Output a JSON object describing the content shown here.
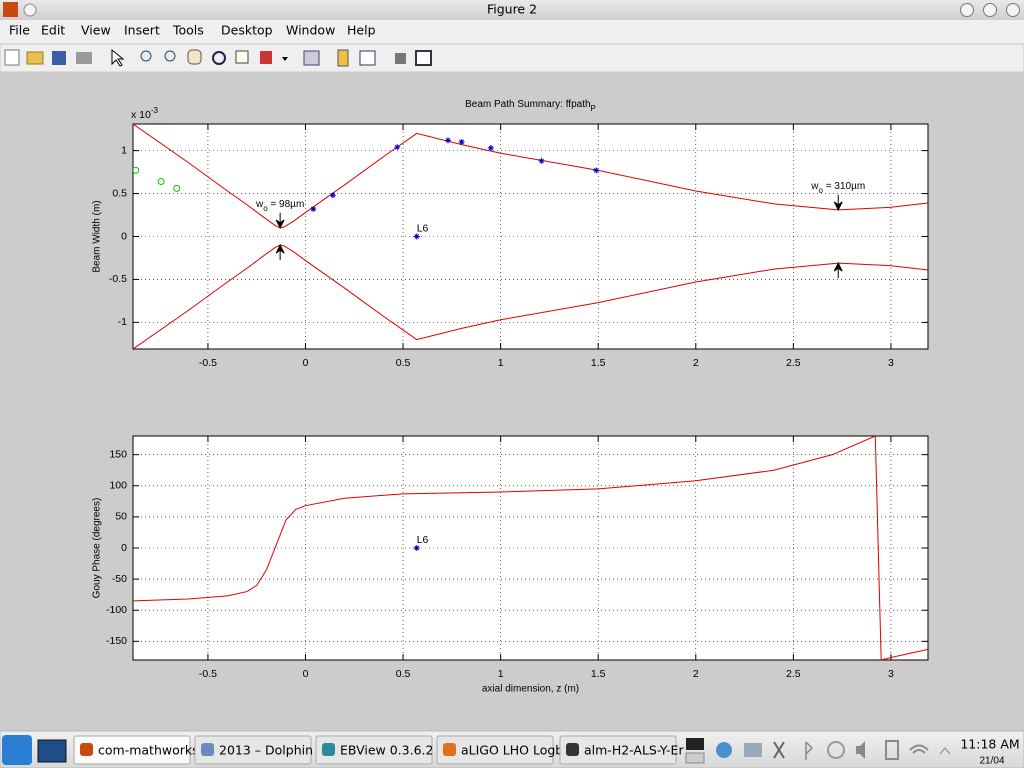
{
  "window": {
    "title": "Figure 2"
  },
  "menu": [
    "File",
    "Edit",
    "View",
    "Insert",
    "Tools",
    "Desktop",
    "Window",
    "Help"
  ],
  "chart_data": [
    {
      "type": "line",
      "title": {
        "text": "Beam Path Summary: ffpath",
        "sub": "P"
      },
      "y_multiplier": {
        "text": "x 10",
        "sup": "-3"
      },
      "ylabel": "Beam Width (m)",
      "xlim": [
        -0.884,
        3.19
      ],
      "ylim": [
        -1.31,
        1.31
      ],
      "xticks": [
        -0.5,
        0,
        0.5,
        1,
        1.5,
        2,
        2.5,
        3
      ],
      "yticks": [
        -1,
        -0.5,
        0,
        0.5,
        1
      ],
      "grid": true,
      "x": [
        -0.884,
        -0.6,
        -0.4,
        -0.3,
        -0.2,
        -0.15,
        -0.13,
        -0.11,
        -0.06,
        0,
        0.2,
        0.4,
        0.57,
        0.8,
        1.0,
        1.5,
        2.0,
        2.4,
        2.73,
        3.0,
        3.19
      ],
      "series": [
        {
          "color": "#e00000",
          "values": [
            1.31,
            0.86,
            0.53,
            0.37,
            0.2,
            0.12,
            0.1,
            0.11,
            0.18,
            0.28,
            0.6,
            0.93,
            1.2,
            1.07,
            0.97,
            0.77,
            0.53,
            0.38,
            0.31,
            0.34,
            0.39
          ]
        },
        {
          "color": "#e00000",
          "values": [
            -1.31,
            -0.86,
            -0.53,
            -0.37,
            -0.2,
            -0.12,
            -0.1,
            -0.11,
            -0.18,
            -0.28,
            -0.6,
            -0.93,
            -1.2,
            -1.07,
            -0.97,
            -0.77,
            -0.53,
            -0.38,
            -0.31,
            -0.34,
            -0.39
          ]
        }
      ],
      "markers": [
        {
          "symbol": "star",
          "color": "#0000cc",
          "x": [
            0.04,
            0.14,
            0.47,
            0.73,
            0.8,
            0.95,
            1.21,
            1.49
          ],
          "values": [
            0.32,
            0.48,
            1.04,
            1.12,
            1.1,
            1.03,
            0.88,
            0.77
          ]
        },
        {
          "symbol": "circle",
          "color": "#00cc00",
          "x": [
            -0.87,
            -0.74,
            -0.66
          ],
          "values": [
            0.77,
            0.64,
            0.56
          ]
        }
      ],
      "points": [
        {
          "label": "L6",
          "x": 0.57,
          "y": 0,
          "color": "#0000cc"
        }
      ],
      "annotations": [
        {
          "base": "w",
          "sub": "o",
          "rest": " = 98µm",
          "x": -0.13,
          "arrow_y": [
            0.1,
            -0.1
          ]
        },
        {
          "base": "w",
          "sub": "o",
          "rest": " = 310µm",
          "x": 2.73,
          "arrow_y": [
            0.31,
            -0.31
          ]
        }
      ]
    },
    {
      "type": "line",
      "ylabel": "Gouy Phase (degrees)",
      "xlabel": "axial dimension, z (m)",
      "xlim": [
        -0.884,
        3.19
      ],
      "ylim": [
        -180,
        180
      ],
      "xticks": [
        -0.5,
        0,
        0.5,
        1,
        1.5,
        2,
        2.5,
        3
      ],
      "yticks": [
        -150,
        -100,
        -50,
        0,
        50,
        100,
        150
      ],
      "grid": true,
      "x": [
        -0.884,
        -0.6,
        -0.4,
        -0.3,
        -0.25,
        -0.2,
        -0.15,
        -0.1,
        -0.05,
        0,
        0.2,
        0.5,
        1.0,
        1.5,
        2.0,
        2.4,
        2.7,
        2.92,
        2.95,
        3.0,
        3.19
      ],
      "series": [
        {
          "color": "#e00000",
          "values": [
            -85,
            -82,
            -77,
            -70,
            -60,
            -35,
            5,
            45,
            62,
            68,
            80,
            87,
            90,
            95,
            108,
            125,
            150,
            180,
            -180,
            -176,
            -163
          ]
        }
      ],
      "points": [
        {
          "label": "L6",
          "x": 0.57,
          "y": 0,
          "color": "#0000cc"
        }
      ]
    }
  ],
  "taskbar": {
    "tasks": [
      "com-mathworks",
      "2013 – Dolphin",
      "EBView 0.3.6.2",
      "aLIGO LHO Logb",
      "alm-H2-ALS-Y-Er"
    ],
    "clock": {
      "time": "11:18 AM",
      "date": "21/04"
    }
  }
}
